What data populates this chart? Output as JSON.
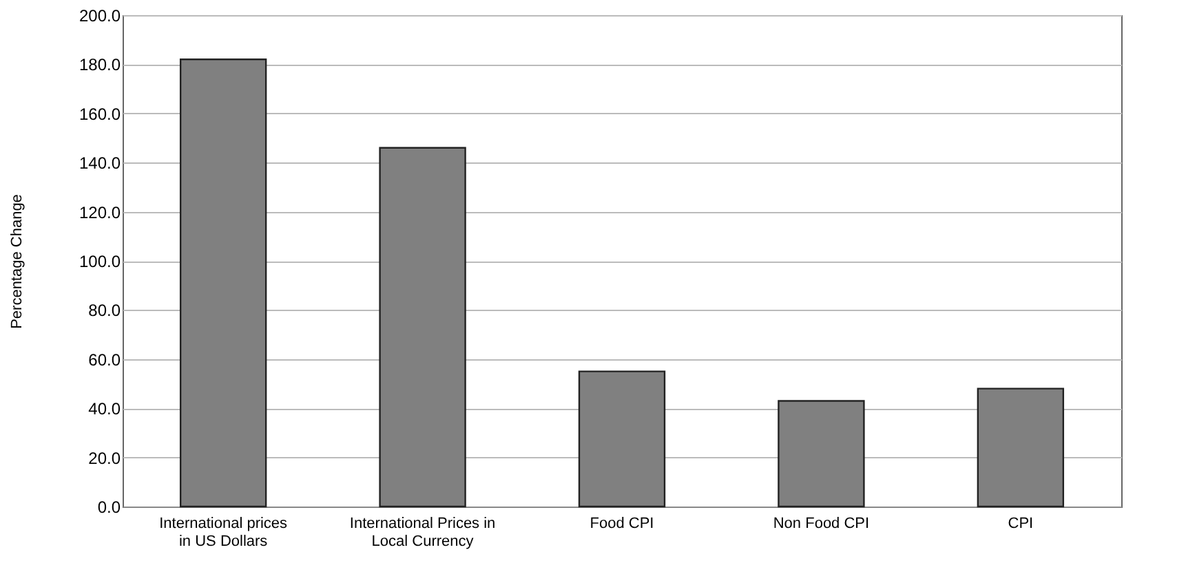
{
  "chart_data": {
    "type": "bar",
    "ylabel": "Percentage Change",
    "categories": [
      "International prices in US Dollars",
      "International Prices in Local Currency",
      "Food CPI",
      "Non Food CPI",
      "CPI"
    ],
    "values": [
      182,
      146,
      55,
      43,
      48
    ],
    "color": "#808080",
    "ylim": [
      0,
      200
    ],
    "yticks": [
      {
        "value": 0,
        "label": "0.0"
      },
      {
        "value": 20,
        "label": "20.0"
      },
      {
        "value": 40,
        "label": "40.0"
      },
      {
        "value": 60,
        "label": "60.0"
      },
      {
        "value": 80,
        "label": "80.0"
      },
      {
        "value": 100,
        "label": "100.0"
      },
      {
        "value": 120,
        "label": "120.0"
      },
      {
        "value": 140,
        "label": "140.0"
      },
      {
        "value": 160,
        "label": "160.0"
      },
      {
        "value": 180,
        "label": "180.0"
      },
      {
        "value": 200,
        "label": "200.0"
      }
    ],
    "grid": "y"
  }
}
